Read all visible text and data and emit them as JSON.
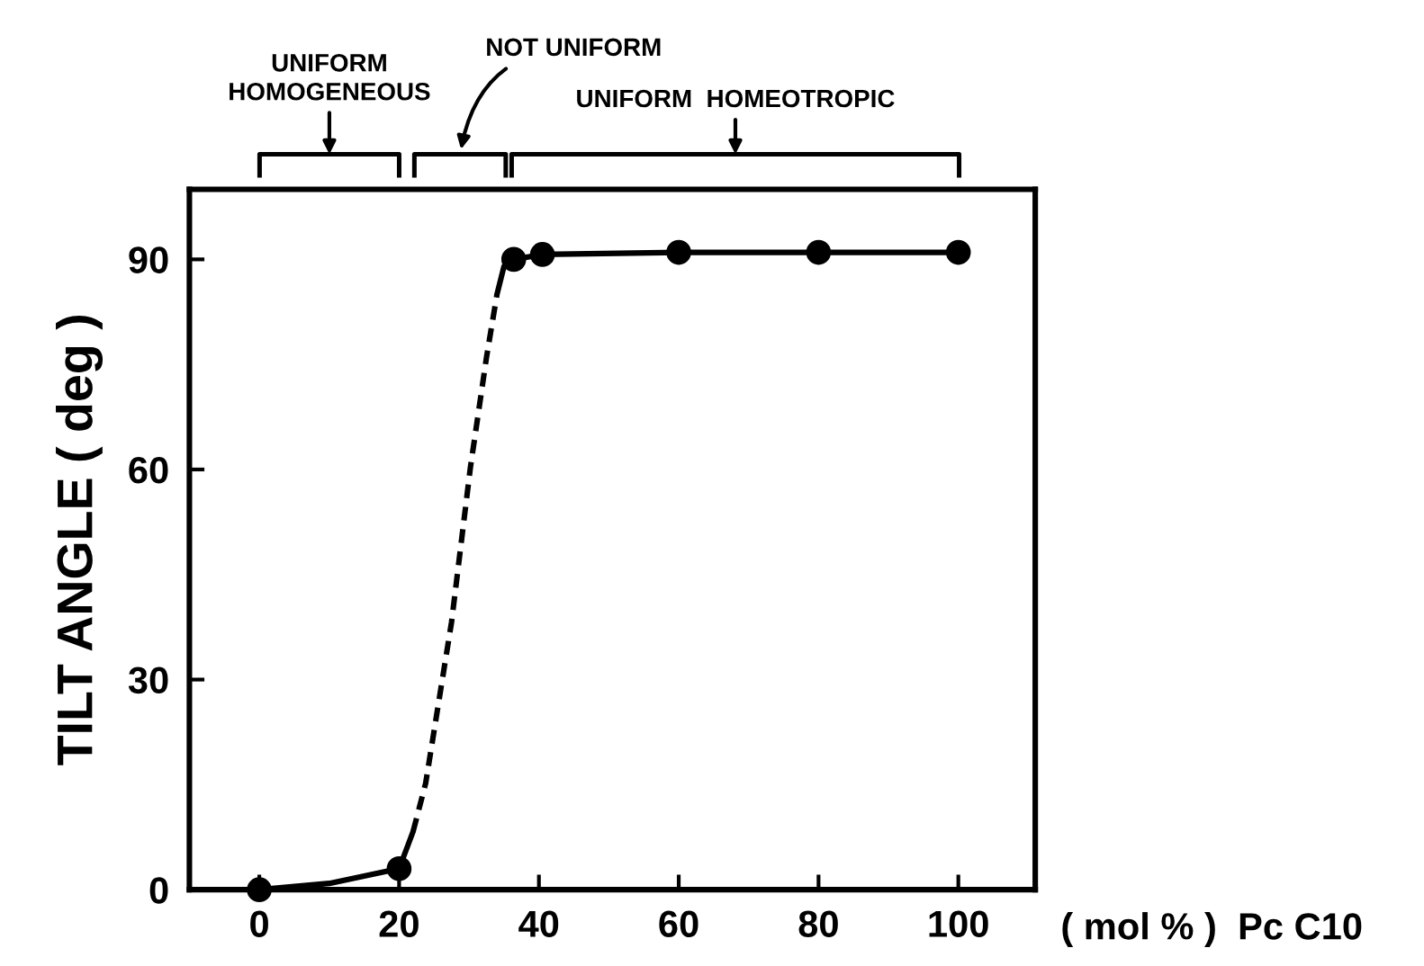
{
  "chart_data": {
    "type": "scatter",
    "xlabel": "( mol % )  Pc C10",
    "ylabel": "TILT ANGLE ( deg )",
    "xlim": [
      -10,
      111
    ],
    "ylim": [
      0,
      100
    ],
    "xticks": [
      0,
      20,
      40,
      60,
      80,
      100
    ],
    "yticks": [
      0,
      30,
      60,
      90
    ],
    "grid": false,
    "legend": false,
    "annotations": [
      "UNIFORM\nHOMOGENEOUS",
      "NOT UNIFORM",
      "UNIFORM  HOMEOTROPIC"
    ],
    "series": [
      {
        "type": "line",
        "color": "#000000",
        "line_style": "solid",
        "marker": "none",
        "x": [
          0,
          10,
          20,
          22
        ],
        "values": [
          0,
          0.9,
          3,
          8.3
        ]
      },
      {
        "type": "line",
        "color": "#000000",
        "line_style": "dashed",
        "marker": "none",
        "x": [
          22,
          23.8,
          27.5,
          30.2,
          32.5,
          34
        ],
        "values": [
          8.3,
          15.2,
          38.2,
          60.3,
          76,
          85
        ]
      },
      {
        "type": "line",
        "color": "#000000",
        "line_style": "solid",
        "marker": "none",
        "x": [
          34,
          35,
          36.4,
          40.5,
          60,
          80,
          100
        ],
        "values": [
          85,
          89,
          90,
          90.7,
          91,
          91,
          91
        ]
      },
      {
        "color": "#000000",
        "marker": "circle",
        "x": [
          0,
          20,
          36.4,
          40.5,
          60,
          80,
          100
        ],
        "values": [
          0,
          3,
          90,
          90.7,
          91,
          91,
          91
        ]
      }
    ]
  }
}
